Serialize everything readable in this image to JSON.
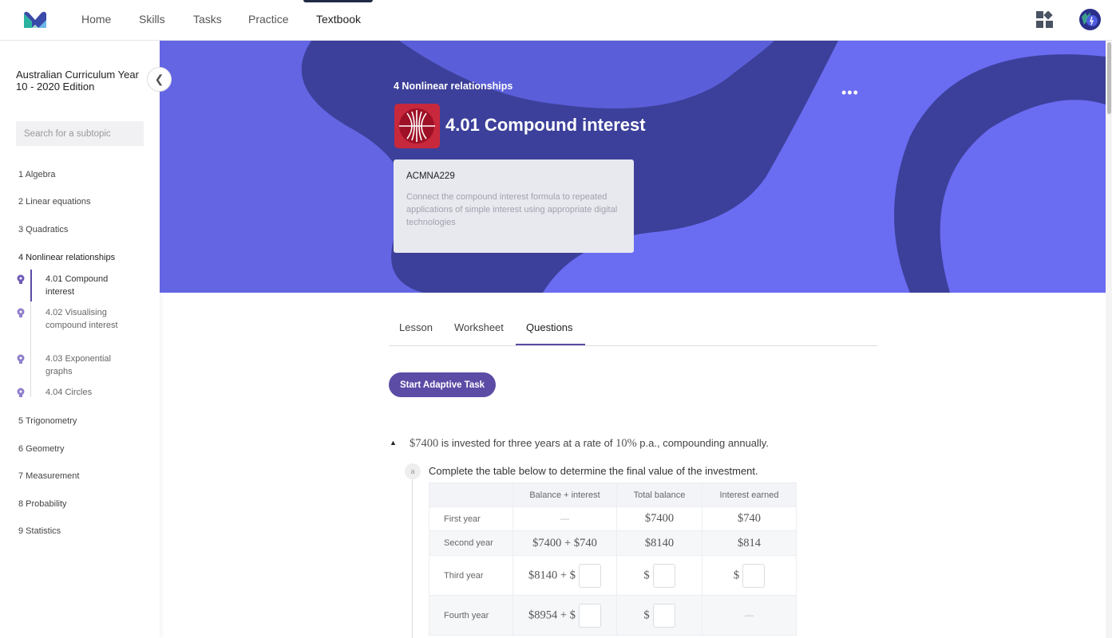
{
  "nav": {
    "items": [
      "Home",
      "Skills",
      "Tasks",
      "Practice",
      "Textbook"
    ],
    "active": "Textbook"
  },
  "sidebar": {
    "book_title": "Australian Curriculum Year 10 - 2020 Edition",
    "search_placeholder": "Search for a subtopic",
    "chapters": [
      "1 Algebra",
      "2 Linear equations",
      "3 Quadratics",
      "4 Nonlinear relationships",
      "5 Trigonometry",
      "6 Geometry",
      "7 Measurement",
      "8 Probability",
      "9 Statistics"
    ],
    "subtopics": [
      "4.01 Compound interest",
      "4.02 Visualising compound interest",
      "4.03 Exponential graphs",
      "4.04 Circles"
    ]
  },
  "banner": {
    "chapter": "4 Nonlinear relationships",
    "title": "4.01 Compound interest",
    "more": "•••",
    "code": "ACMNA229",
    "description": "Connect the compound interest formula to repeated applications of simple interest using appropriate digital technologies"
  },
  "tabs": [
    "Lesson",
    "Worksheet",
    "Questions"
  ],
  "active_tab": "Questions",
  "start_button": "Start Adaptive Task",
  "question": {
    "amount": "$7400",
    "text1": " is invested for three years at a rate of ",
    "rate": "10%",
    "text2": " p.a., compounding annually.",
    "part_label": "a",
    "part_text": "Complete the table below to determine the final value of the investment.",
    "headers": [
      "",
      "Balance + interest",
      "Total balance",
      "Interest earned"
    ],
    "rows": [
      [
        "First year",
        "—",
        "$7400",
        "$740"
      ],
      [
        "Second year",
        "$7400 + $740",
        "$8140",
        "$814"
      ],
      [
        "Third year",
        "$8140 + $",
        "$",
        "$"
      ],
      [
        "Fourth year",
        "$8954 + $",
        "$",
        "—"
      ]
    ]
  },
  "colors": {
    "accent": "#5c4ca6",
    "banner_dark": "#3c409a",
    "banner_light": "#6a6cf2",
    "topic_icon": "#c8283c"
  }
}
